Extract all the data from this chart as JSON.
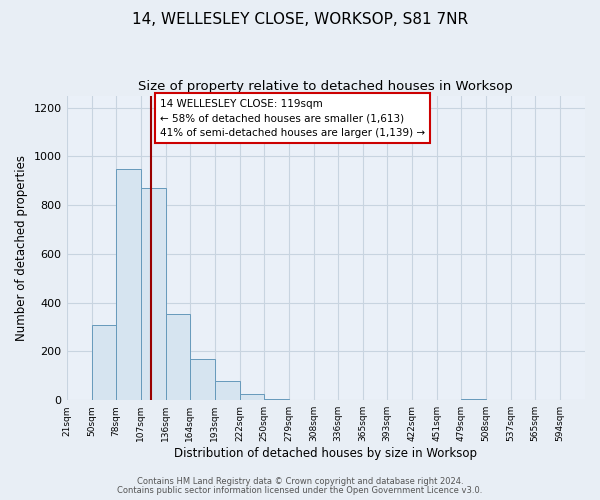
{
  "title1": "14, WELLESLEY CLOSE, WORKSOP, S81 7NR",
  "title2": "Size of property relative to detached houses in Worksop",
  "xlabel": "Distribution of detached houses by size in Worksop",
  "ylabel": "Number of detached properties",
  "bar_color": "#d6e4f0",
  "bar_edgecolor": "#6699bb",
  "bin_labels": [
    "21sqm",
    "50sqm",
    "78sqm",
    "107sqm",
    "136sqm",
    "164sqm",
    "193sqm",
    "222sqm",
    "250sqm",
    "279sqm",
    "308sqm",
    "336sqm",
    "365sqm",
    "393sqm",
    "422sqm",
    "451sqm",
    "479sqm",
    "508sqm",
    "537sqm",
    "565sqm",
    "594sqm"
  ],
  "bin_edges": [
    21,
    50,
    78,
    107,
    136,
    164,
    193,
    222,
    250,
    279,
    308,
    336,
    365,
    393,
    422,
    451,
    479,
    508,
    537,
    565,
    594,
    623
  ],
  "bar_heights": [
    0,
    310,
    950,
    870,
    355,
    170,
    80,
    25,
    5,
    0,
    0,
    0,
    0,
    0,
    0,
    0,
    5,
    0,
    0,
    0,
    0
  ],
  "ylim": [
    0,
    1250
  ],
  "yticks": [
    0,
    200,
    400,
    600,
    800,
    1000,
    1200
  ],
  "property_size": 119,
  "vline_color": "#990000",
  "annotation_line1": "14 WELLESLEY CLOSE: 119sqm",
  "annotation_line2": "← 58% of detached houses are smaller (1,613)",
  "annotation_line3": "41% of semi-detached houses are larger (1,139) →",
  "annotation_box_facecolor": "#ffffff",
  "annotation_box_edgecolor": "#cc0000",
  "footer1": "Contains HM Land Registry data © Crown copyright and database right 2024.",
  "footer2": "Contains public sector information licensed under the Open Government Licence v3.0.",
  "background_color": "#e8eef5",
  "plot_facecolor": "#eaf0f8",
  "grid_color": "#c8d4e0",
  "title1_fontsize": 11,
  "title2_fontsize": 9.5,
  "ylabel_fontsize": 8.5,
  "xlabel_fontsize": 8.5,
  "ytick_fontsize": 8,
  "xtick_fontsize": 6.5,
  "annotation_fontsize": 7.5,
  "footer_fontsize": 6
}
